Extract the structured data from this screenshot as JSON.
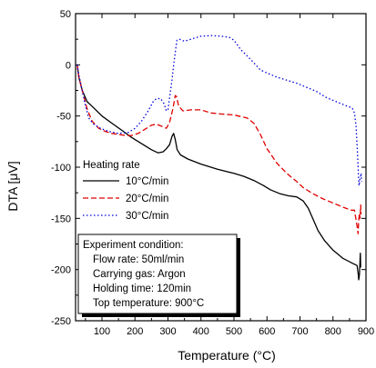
{
  "chart_data": {
    "type": "line",
    "xlabel": "Temperature (°C)",
    "ylabel": "DTA [μV]",
    "xlim": [
      20,
      900
    ],
    "ylim": [
      -250,
      50
    ],
    "xticks": [
      100,
      200,
      300,
      400,
      500,
      600,
      700,
      800,
      900
    ],
    "yticks": [
      -250,
      -200,
      -150,
      -100,
      -50,
      0,
      50
    ],
    "grid": false,
    "legend": {
      "title": "Heating rate",
      "placement": "middle-left",
      "entries": [
        "10°C/min",
        "20°C/min",
        "30°C/min"
      ]
    },
    "annotation": {
      "title": "Experiment condition:",
      "lines": [
        "Flow rate: 50ml/min",
        "Carrying gas: Argon",
        "Holding time: 120min",
        "Top temperature: 900°C"
      ],
      "placement": "lower-left"
    },
    "series": [
      {
        "name": "10°C/min",
        "color": "#000000",
        "style": "solid",
        "points": [
          [
            25,
            0
          ],
          [
            30,
            -12
          ],
          [
            40,
            -25
          ],
          [
            55,
            -36
          ],
          [
            75,
            -42
          ],
          [
            100,
            -50
          ],
          [
            130,
            -57
          ],
          [
            160,
            -64
          ],
          [
            190,
            -71
          ],
          [
            220,
            -77
          ],
          [
            250,
            -83
          ],
          [
            270,
            -86
          ],
          [
            285,
            -85
          ],
          [
            295,
            -82
          ],
          [
            305,
            -78
          ],
          [
            312,
            -70
          ],
          [
            317,
            -67
          ],
          [
            322,
            -73
          ],
          [
            328,
            -83
          ],
          [
            338,
            -88
          ],
          [
            360,
            -92
          ],
          [
            400,
            -97
          ],
          [
            450,
            -102
          ],
          [
            500,
            -106
          ],
          [
            530,
            -109
          ],
          [
            560,
            -113
          ],
          [
            590,
            -118
          ],
          [
            610,
            -122
          ],
          [
            640,
            -126
          ],
          [
            665,
            -128
          ],
          [
            690,
            -129
          ],
          [
            710,
            -133
          ],
          [
            725,
            -140
          ],
          [
            740,
            -151
          ],
          [
            755,
            -162
          ],
          [
            775,
            -172
          ],
          [
            800,
            -181
          ],
          [
            830,
            -189
          ],
          [
            860,
            -194
          ],
          [
            873,
            -196
          ],
          [
            876,
            -203
          ],
          [
            878,
            -210
          ],
          [
            880,
            -205
          ],
          [
            882,
            -190
          ],
          [
            883,
            -184
          ],
          [
            884,
            -198
          ]
        ]
      },
      {
        "name": "20°C/min",
        "color": "#e00000",
        "style": "dashed",
        "points": [
          [
            25,
            0
          ],
          [
            30,
            -12
          ],
          [
            40,
            -25
          ],
          [
            55,
            -43
          ],
          [
            70,
            -55
          ],
          [
            90,
            -62
          ],
          [
            110,
            -65
          ],
          [
            130,
            -67
          ],
          [
            150,
            -68
          ],
          [
            170,
            -69
          ],
          [
            190,
            -69
          ],
          [
            210,
            -67
          ],
          [
            230,
            -63
          ],
          [
            250,
            -59
          ],
          [
            265,
            -58
          ],
          [
            280,
            -60
          ],
          [
            295,
            -62
          ],
          [
            305,
            -56
          ],
          [
            315,
            -43
          ],
          [
            322,
            -30
          ],
          [
            326,
            -31
          ],
          [
            332,
            -40
          ],
          [
            345,
            -45
          ],
          [
            370,
            -44
          ],
          [
            400,
            -44
          ],
          [
            430,
            -47
          ],
          [
            460,
            -48
          ],
          [
            500,
            -49
          ],
          [
            540,
            -52
          ],
          [
            560,
            -57
          ],
          [
            580,
            -68
          ],
          [
            600,
            -82
          ],
          [
            630,
            -96
          ],
          [
            660,
            -106
          ],
          [
            690,
            -114
          ],
          [
            710,
            -120
          ],
          [
            740,
            -126
          ],
          [
            770,
            -131
          ],
          [
            800,
            -135
          ],
          [
            830,
            -139
          ],
          [
            855,
            -142
          ],
          [
            865,
            -142
          ],
          [
            872,
            -155
          ],
          [
            876,
            -165
          ],
          [
            878,
            -152
          ],
          [
            880,
            -145
          ],
          [
            882,
            -150
          ],
          [
            884,
            -137
          ],
          [
            885,
            -146
          ]
        ]
      },
      {
        "name": "30°C/min",
        "color": "#0000dd",
        "style": "dotted",
        "points": [
          [
            25,
            0
          ],
          [
            30,
            -10
          ],
          [
            40,
            -25
          ],
          [
            50,
            -40
          ],
          [
            60,
            -52
          ],
          [
            75,
            -58
          ],
          [
            95,
            -62
          ],
          [
            120,
            -65
          ],
          [
            150,
            -67
          ],
          [
            180,
            -66
          ],
          [
            200,
            -62
          ],
          [
            220,
            -55
          ],
          [
            240,
            -45
          ],
          [
            255,
            -36
          ],
          [
            265,
            -33
          ],
          [
            278,
            -33
          ],
          [
            288,
            -38
          ],
          [
            295,
            -45
          ],
          [
            300,
            -44
          ],
          [
            305,
            -32
          ],
          [
            312,
            -15
          ],
          [
            318,
            2
          ],
          [
            322,
            12
          ],
          [
            327,
            24
          ],
          [
            335,
            25
          ],
          [
            350,
            23
          ],
          [
            380,
            26
          ],
          [
            400,
            28
          ],
          [
            430,
            28.5
          ],
          [
            460,
            28
          ],
          [
            485,
            27
          ],
          [
            500,
            24
          ],
          [
            520,
            15
          ],
          [
            545,
            7
          ],
          [
            560,
            2
          ],
          [
            580,
            -5
          ],
          [
            600,
            -8
          ],
          [
            630,
            -12
          ],
          [
            660,
            -15
          ],
          [
            690,
            -18
          ],
          [
            720,
            -22
          ],
          [
            750,
            -26
          ],
          [
            780,
            -32
          ],
          [
            810,
            -36
          ],
          [
            840,
            -40
          ],
          [
            858,
            -42
          ],
          [
            865,
            -47
          ],
          [
            870,
            -60
          ],
          [
            874,
            -85
          ],
          [
            877,
            -108
          ],
          [
            879,
            -118
          ],
          [
            881,
            -113
          ],
          [
            883,
            -110
          ],
          [
            885,
            -106
          ],
          [
            887,
            -114
          ]
        ]
      }
    ]
  }
}
